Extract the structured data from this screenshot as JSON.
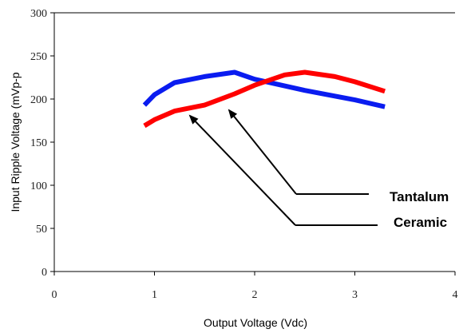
{
  "chart_data": {
    "type": "line",
    "title": "",
    "xlabel": "Output Voltage (Vdc)",
    "ylabel": "Input Ripple Voltage (mVp-p",
    "xlim": [
      0,
      4
    ],
    "ylim": [
      0,
      300
    ],
    "x_ticks": [
      0,
      1,
      2,
      3,
      4
    ],
    "y_ticks": [
      0,
      50,
      100,
      150,
      200,
      250,
      300
    ],
    "grid": false,
    "series": [
      {
        "color": "#0a1cf0",
        "points": [
          [
            0.9,
            193
          ],
          [
            1.0,
            205
          ],
          [
            1.2,
            219
          ],
          [
            1.5,
            226
          ],
          [
            1.8,
            231
          ],
          [
            2.0,
            223
          ],
          [
            2.5,
            210
          ],
          [
            3.0,
            199
          ],
          [
            3.3,
            191
          ]
        ]
      },
      {
        "color": "#ff0000",
        "points": [
          [
            0.9,
            169
          ],
          [
            1.0,
            176
          ],
          [
            1.2,
            186
          ],
          [
            1.5,
            193
          ],
          [
            1.8,
            206
          ],
          [
            2.0,
            216
          ],
          [
            2.3,
            228
          ],
          [
            2.5,
            231
          ],
          [
            2.8,
            226
          ],
          [
            3.0,
            220
          ],
          [
            3.3,
            209
          ]
        ]
      }
    ],
    "annotations": [
      {
        "text": "Tantalum",
        "target": [
          1.75,
          231
        ]
      },
      {
        "text": "Ceramic",
        "target": [
          1.3,
          188
        ]
      }
    ]
  }
}
